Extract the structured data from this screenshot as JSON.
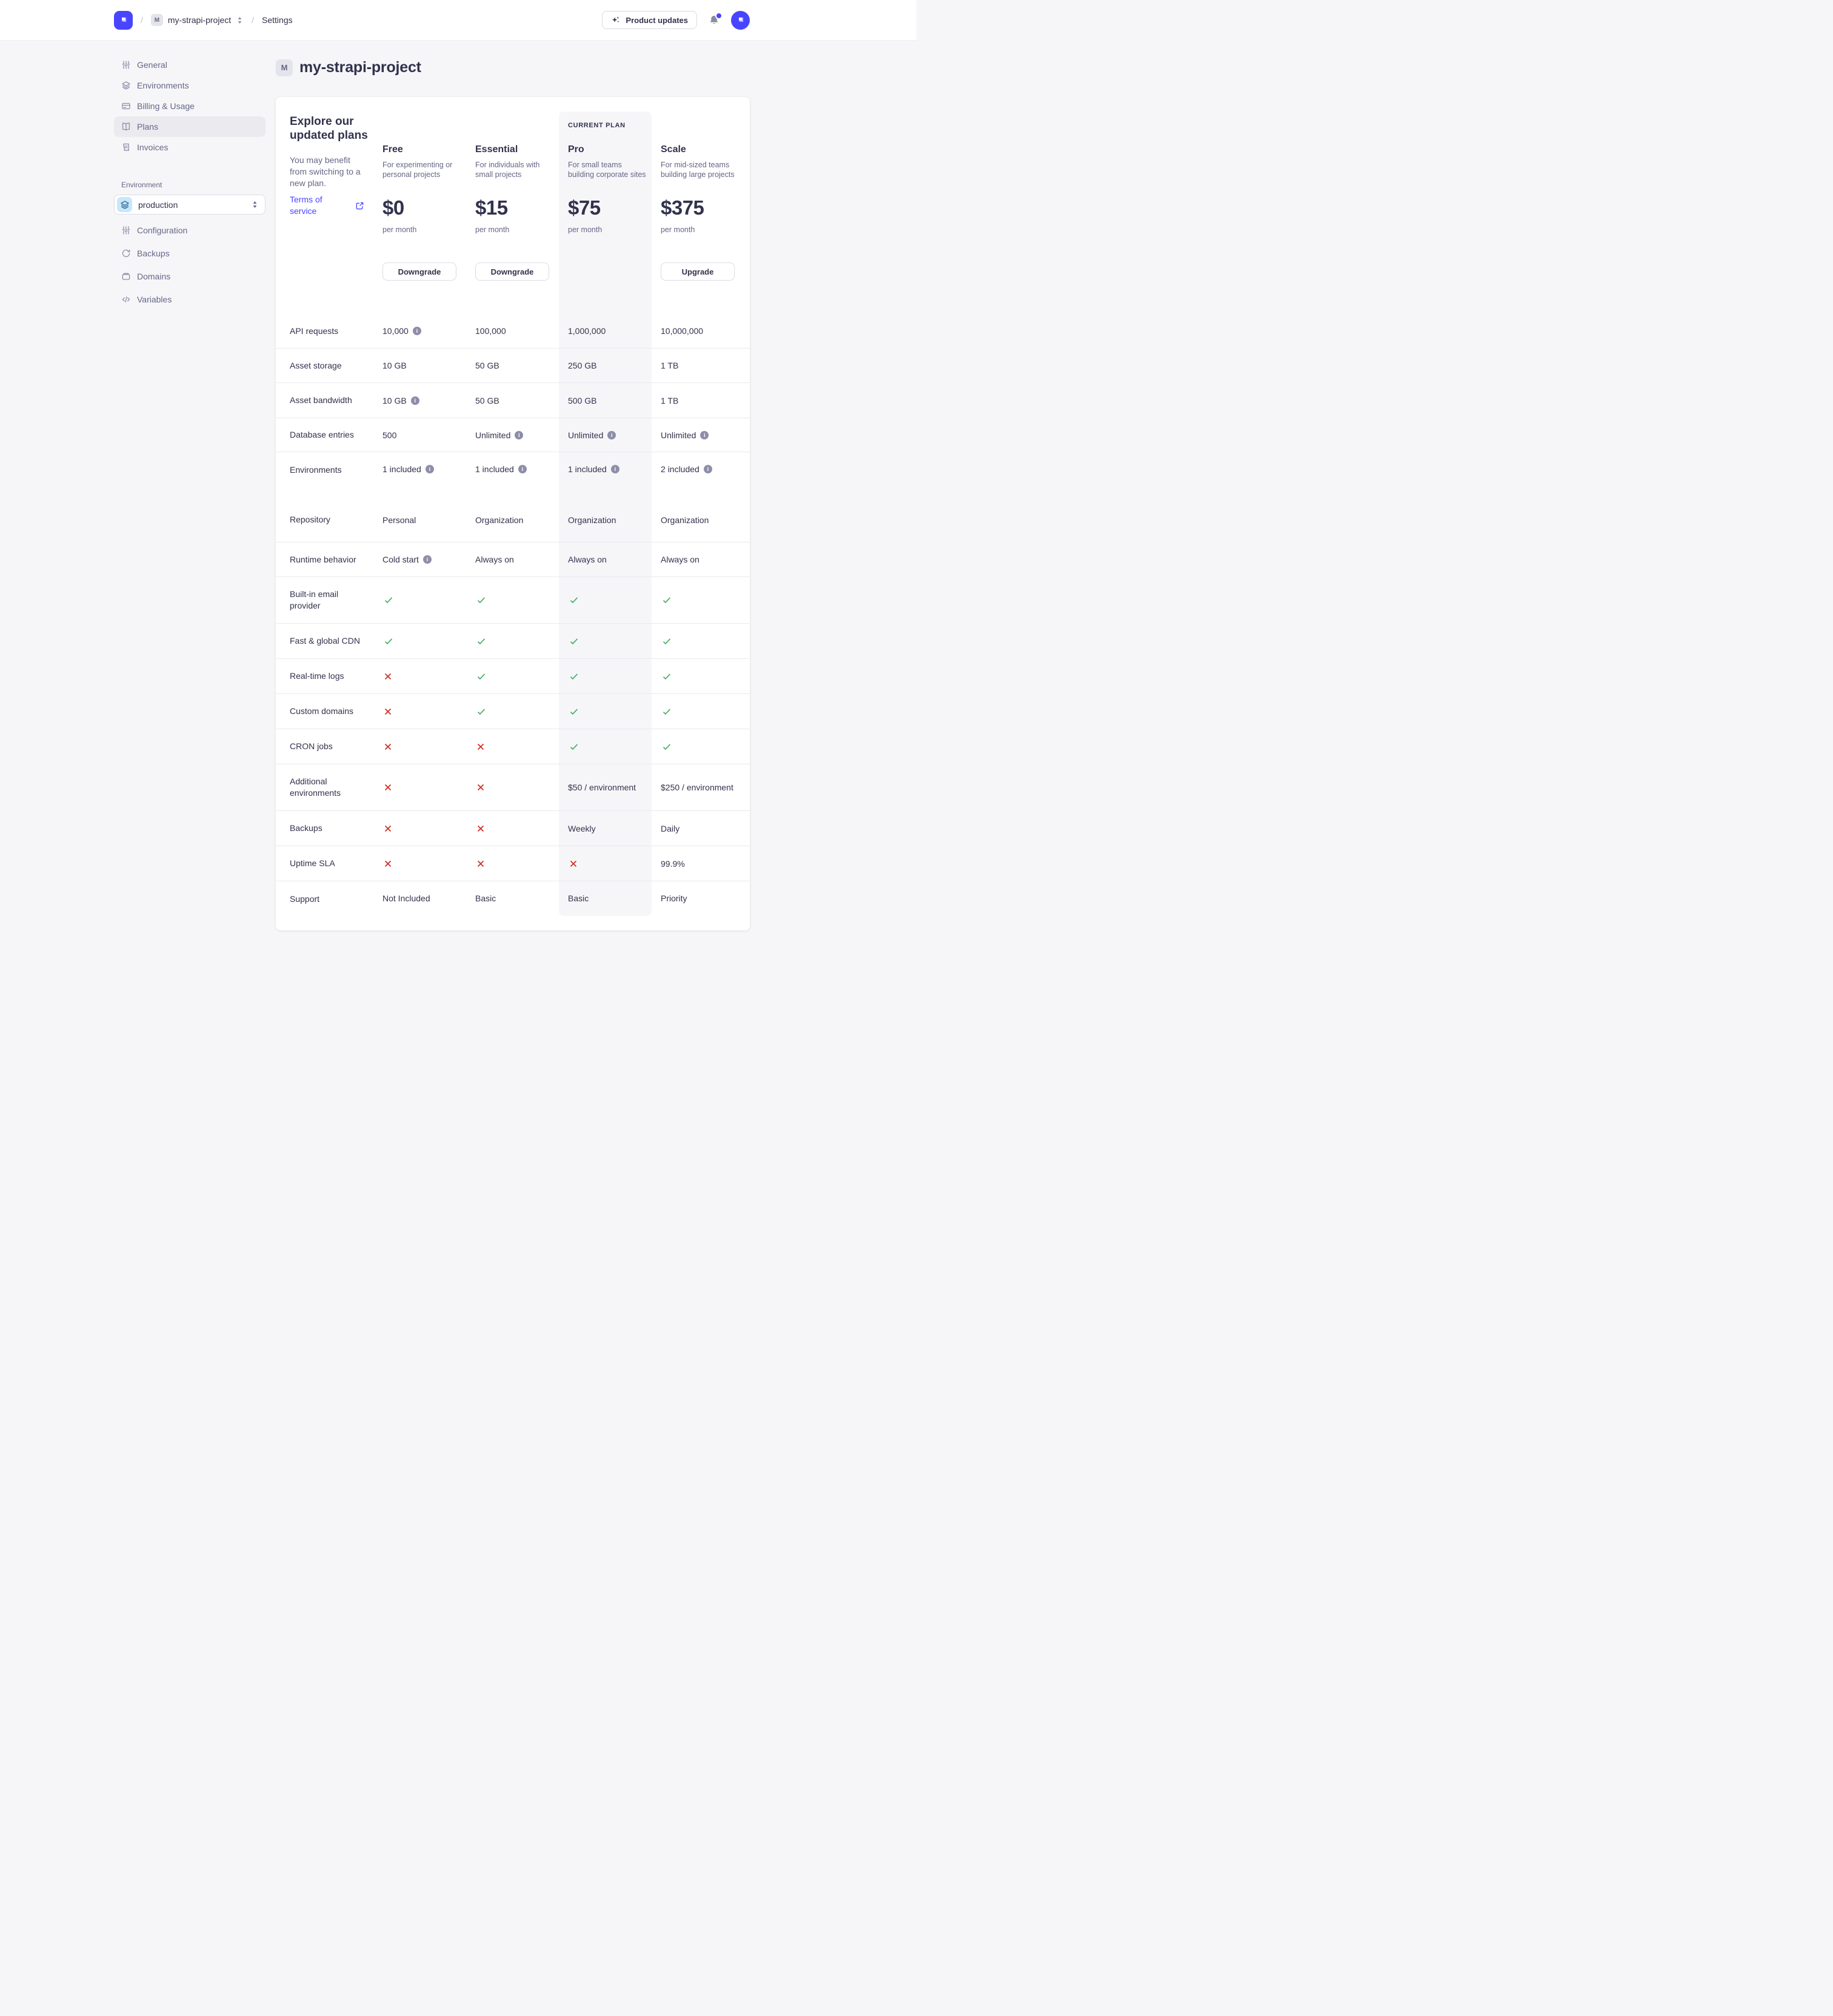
{
  "topbar": {
    "breadcrumb_separator": "/",
    "project_initial": "M",
    "project_name": "my-strapi-project",
    "section": "Settings",
    "product_updates_label": "Product updates"
  },
  "sidebar": {
    "project_items": [
      {
        "icon": "sliders",
        "label": "General",
        "active": false
      },
      {
        "icon": "layers",
        "label": "Environments",
        "active": false
      },
      {
        "icon": "credit-card",
        "label": "Billing & Usage",
        "active": false
      },
      {
        "icon": "book",
        "label": "Plans",
        "active": true
      },
      {
        "icon": "receipt",
        "label": "Invoices",
        "active": false
      }
    ],
    "environment_section_label": "Environment",
    "environment_selected": "production",
    "environment_items": [
      {
        "icon": "sliders",
        "label": "Configuration"
      },
      {
        "icon": "refresh",
        "label": "Backups"
      },
      {
        "icon": "folder",
        "label": "Domains"
      },
      {
        "icon": "code",
        "label": "Variables"
      }
    ]
  },
  "main": {
    "project_initial": "M",
    "title": "my-strapi-project",
    "intro": {
      "heading": "Explore our updated plans",
      "body": "You may benefit from switching to a new plan.",
      "link": "Terms of service"
    },
    "current_plan_label": "CURRENT PLAN",
    "plans": [
      {
        "name": "Free",
        "description": "For experimenting or personal projects",
        "price": "$0",
        "period": "per month",
        "action": "Downgrade",
        "current": false
      },
      {
        "name": "Essential",
        "description": "For individuals with small projects",
        "price": "$15",
        "period": "per month",
        "action": "Downgrade",
        "current": false
      },
      {
        "name": "Pro",
        "description": "For small teams building corporate sites",
        "price": "$75",
        "period": "per month",
        "action": null,
        "current": true
      },
      {
        "name": "Scale",
        "description": "For mid-sized teams building large projects",
        "price": "$375",
        "period": "per month",
        "action": "Upgrade",
        "current": false
      }
    ],
    "features": [
      {
        "label": "API requests",
        "height": 57,
        "divided": true,
        "cells": [
          {
            "type": "text",
            "value": "10,000",
            "info": true
          },
          {
            "type": "text",
            "value": "100,000"
          },
          {
            "type": "text",
            "value": "1,000,000"
          },
          {
            "type": "text",
            "value": "10,000,000"
          }
        ]
      },
      {
        "label": "Asset storage",
        "height": 57,
        "divided": true,
        "cells": [
          {
            "type": "text",
            "value": "10 GB"
          },
          {
            "type": "text",
            "value": "50 GB"
          },
          {
            "type": "text",
            "value": "250 GB"
          },
          {
            "type": "text",
            "value": "1 TB"
          }
        ]
      },
      {
        "label": "Asset bandwidth",
        "height": 58,
        "divided": true,
        "cells": [
          {
            "type": "text",
            "value": "10 GB",
            "info": true
          },
          {
            "type": "text",
            "value": "50 GB"
          },
          {
            "type": "text",
            "value": "500 GB"
          },
          {
            "type": "text",
            "value": "1 TB"
          }
        ]
      },
      {
        "label": "Database entries",
        "height": 56,
        "divided": true,
        "cells": [
          {
            "type": "text",
            "value": "500"
          },
          {
            "type": "text",
            "value": "Unlimited",
            "info": true
          },
          {
            "type": "text",
            "value": "Unlimited",
            "info": true
          },
          {
            "type": "text",
            "value": "Unlimited",
            "info": true
          }
        ]
      },
      {
        "label": "Environments",
        "height": 75,
        "divided": false,
        "top_align": true,
        "cells": [
          {
            "type": "text",
            "value": "1 included",
            "info": true
          },
          {
            "type": "text",
            "value": "1 included",
            "info": true
          },
          {
            "type": "text",
            "value": "1 included",
            "info": true
          },
          {
            "type": "text",
            "value": "2 included",
            "info": true
          }
        ]
      },
      {
        "label": "Repository",
        "height": 74,
        "divided": true,
        "cells": [
          {
            "type": "text",
            "value": "Personal"
          },
          {
            "type": "text",
            "value": "Organization"
          },
          {
            "type": "text",
            "value": "Organization"
          },
          {
            "type": "text",
            "value": "Organization"
          }
        ]
      },
      {
        "label": "Runtime behavior",
        "height": 57,
        "divided": true,
        "cells": [
          {
            "type": "text",
            "value": "Cold start",
            "info": true
          },
          {
            "type": "text",
            "value": "Always on"
          },
          {
            "type": "text",
            "value": "Always on"
          },
          {
            "type": "text",
            "value": "Always on"
          }
        ]
      },
      {
        "label": "Built-in email provider",
        "height": 77,
        "divided": true,
        "cells": [
          {
            "type": "check"
          },
          {
            "type": "check"
          },
          {
            "type": "check"
          },
          {
            "type": "check"
          }
        ]
      },
      {
        "label": "Fast & global CDN",
        "height": 58,
        "divided": true,
        "cells": [
          {
            "type": "check"
          },
          {
            "type": "check"
          },
          {
            "type": "check"
          },
          {
            "type": "check"
          }
        ]
      },
      {
        "label": "Real-time logs",
        "height": 58,
        "divided": true,
        "cells": [
          {
            "type": "cross"
          },
          {
            "type": "check"
          },
          {
            "type": "check"
          },
          {
            "type": "check"
          }
        ]
      },
      {
        "label": "Custom domains",
        "height": 58,
        "divided": true,
        "cells": [
          {
            "type": "cross"
          },
          {
            "type": "check"
          },
          {
            "type": "check"
          },
          {
            "type": "check"
          }
        ]
      },
      {
        "label": "CRON jobs",
        "height": 58,
        "divided": true,
        "cells": [
          {
            "type": "cross"
          },
          {
            "type": "cross"
          },
          {
            "type": "check"
          },
          {
            "type": "check"
          }
        ]
      },
      {
        "label": "Additional environments",
        "height": 77,
        "divided": true,
        "cells": [
          {
            "type": "cross"
          },
          {
            "type": "cross"
          },
          {
            "type": "text",
            "value": "$50 / environment"
          },
          {
            "type": "text",
            "value": "$250 / environment"
          }
        ]
      },
      {
        "label": "Backups",
        "height": 58,
        "divided": true,
        "cells": [
          {
            "type": "cross"
          },
          {
            "type": "cross"
          },
          {
            "type": "text",
            "value": "Weekly"
          },
          {
            "type": "text",
            "value": "Daily"
          }
        ]
      },
      {
        "label": "Uptime SLA",
        "height": 58,
        "divided": true,
        "cells": [
          {
            "type": "cross"
          },
          {
            "type": "cross"
          },
          {
            "type": "cross"
          },
          {
            "type": "text",
            "value": "99.9%"
          }
        ]
      },
      {
        "label": "Support",
        "height": 81,
        "divided": false,
        "top_align": true,
        "cells": [
          {
            "type": "text",
            "value": "Not Included"
          },
          {
            "type": "text",
            "value": "Basic"
          },
          {
            "type": "text",
            "value": "Basic"
          },
          {
            "type": "text",
            "value": "Priority"
          }
        ]
      }
    ]
  },
  "colors": {
    "accent": "#4945ff",
    "link": "#4945ff",
    "check_green": "#4caf68",
    "cross_red": "#d02b20",
    "pro_highlight_bg": "#f6f6f9",
    "env_chip_bg": "#c7e7fb",
    "env_chip_icon": "#2f6b95",
    "notification_dot": "#4945ff"
  }
}
